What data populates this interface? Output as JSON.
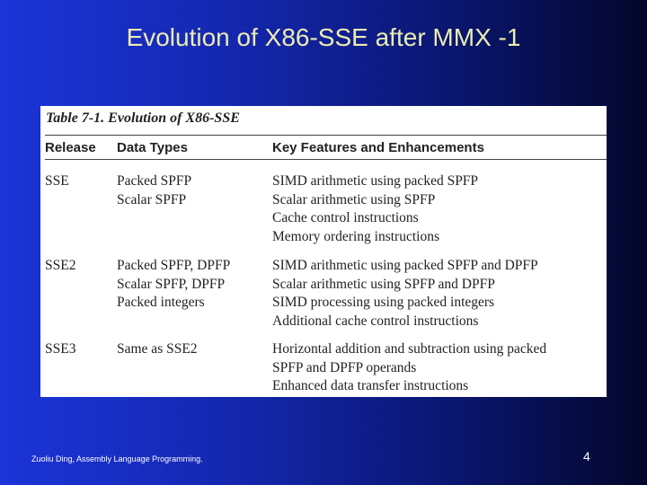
{
  "slide": {
    "title": "Evolution of X86-SSE after MMX -1",
    "footer": "Zuoliu Ding, Assembly Language Programming.",
    "page_number": "4"
  },
  "table": {
    "caption": "Table 7-1.  Evolution of X86-SSE",
    "headers": [
      "Release",
      "Data Types",
      "Key Features and Enhancements"
    ],
    "rows": [
      {
        "release": "SSE",
        "data_types": [
          "Packed SPFP",
          "Scalar SPFP"
        ],
        "features": [
          "SIMD arithmetic using packed SPFP",
          "Scalar arithmetic using SPFP",
          "Cache control instructions",
          "Memory ordering instructions"
        ]
      },
      {
        "release": "SSE2",
        "data_types": [
          "Packed SPFP, DPFP",
          "Scalar SPFP, DPFP",
          "Packed integers"
        ],
        "features": [
          "SIMD arithmetic using packed SPFP and DPFP",
          "Scalar arithmetic using SPFP and DPFP",
          "SIMD processing using packed integers",
          "Additional cache control instructions"
        ]
      },
      {
        "release": "SSE3",
        "data_types": [
          "Same as SSE2"
        ],
        "features": [
          "Horizontal addition and subtraction using packed",
          "SPFP and DPFP operands",
          "Enhanced data transfer instructions"
        ]
      }
    ]
  }
}
